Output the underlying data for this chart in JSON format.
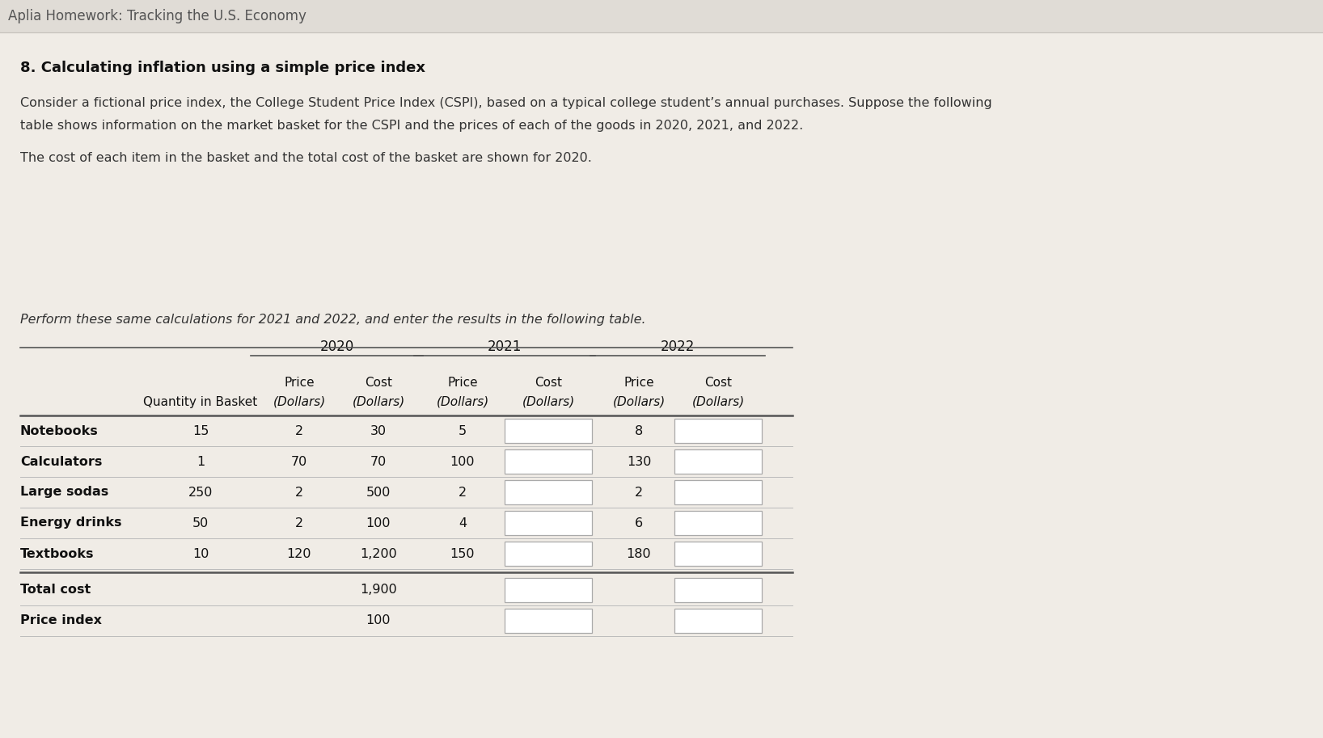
{
  "page_title": "Aplia Homework: Tracking the U.S. Economy",
  "section_title": "8. Calculating inflation using a simple price index",
  "para1_line1": "Consider a fictional price index, the College Student Price Index (CSPI), based on a typical college student’s annual purchases. Suppose the following",
  "para1_line2": "table shows information on the market basket for the CSPI and the prices of each of the goods in 2020, 2021, and 2022.",
  "paragraph2": "The cost of each item in the basket and the total cost of the basket are shown for 2020.",
  "paragraph3": "Perform these same calculations for 2021 and 2022, and enter the results in the following table.",
  "bg_color": "#e8e4de",
  "white_panel": "#f5f2ee",
  "rows": [
    {
      "label": "Notebooks",
      "qty": "15",
      "p2020": "2",
      "c2020": "30",
      "p2021": "5",
      "p2022": "8"
    },
    {
      "label": "Calculators",
      "qty": "1",
      "p2020": "70",
      "c2020": "70",
      "p2021": "100",
      "p2022": "130"
    },
    {
      "label": "Large sodas",
      "qty": "250",
      "p2020": "2",
      "c2020": "500",
      "p2021": "2",
      "p2022": "2"
    },
    {
      "label": "Energy drinks",
      "qty": "50",
      "p2020": "2",
      "c2020": "100",
      "p2021": "4",
      "p2022": "6"
    },
    {
      "label": "Textbooks",
      "qty": "10",
      "p2020": "120",
      "c2020": "1,200",
      "p2021": "150",
      "p2022": "180"
    }
  ],
  "total_c2020": "1,900",
  "index_c2020": "100"
}
